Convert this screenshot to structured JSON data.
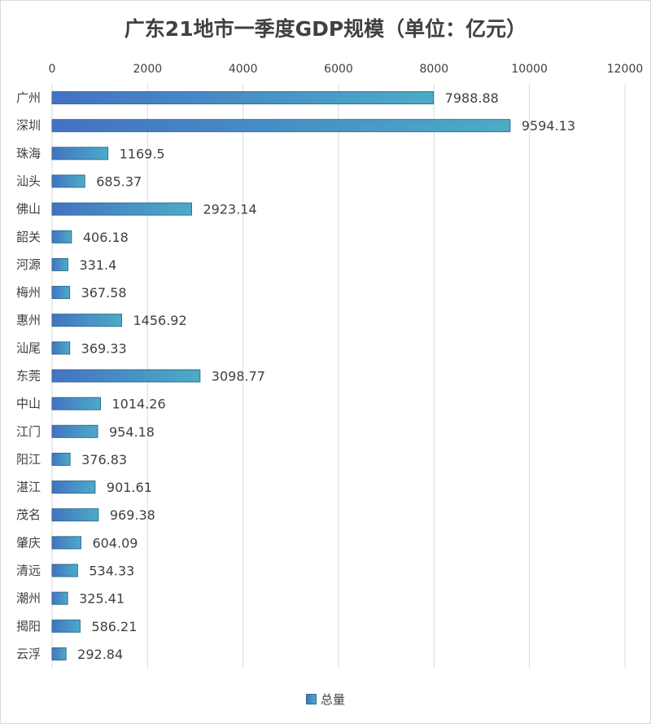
{
  "chart_data": {
    "type": "bar",
    "orientation": "horizontal",
    "title": "广东21地市一季度GDP规模（单位：亿元）",
    "categories": [
      "广州",
      "深圳",
      "珠海",
      "汕头",
      "佛山",
      "韶关",
      "河源",
      "梅州",
      "惠州",
      "汕尾",
      "东莞",
      "中山",
      "江门",
      "阳江",
      "湛江",
      "茂名",
      "肇庆",
      "清远",
      "潮州",
      "揭阳",
      "云浮"
    ],
    "series": [
      {
        "name": "总量",
        "values": [
          7988.88,
          9594.13,
          1169.5,
          685.37,
          2923.14,
          406.18,
          331.4,
          367.58,
          1456.92,
          369.33,
          3098.77,
          1014.26,
          954.18,
          376.83,
          901.61,
          969.38,
          604.09,
          534.33,
          325.41,
          586.21,
          292.84
        ],
        "value_labels": [
          "7988.88",
          "9594.13",
          "1169.5",
          "685.37",
          "2923.14",
          "406.18",
          "331.4",
          "367.58",
          "1456.92",
          "369.33",
          "3098.77",
          "1014.26",
          "954.18",
          "376.83",
          "901.61",
          "969.38",
          "604.09",
          "534.33",
          "325.41",
          "586.21",
          "292.84"
        ]
      }
    ],
    "xlim": [
      0,
      12000
    ],
    "x_ticks": [
      0,
      2000,
      4000,
      6000,
      8000,
      10000,
      12000
    ],
    "x_axis_position": "top",
    "grid": true,
    "legend": "bottom",
    "colors": {
      "bar_start": "#4472c4",
      "bar_end": "#4bacc6",
      "bar_border": "#2e6e8c",
      "grid": "#d9d9d9",
      "text": "#404040"
    }
  }
}
